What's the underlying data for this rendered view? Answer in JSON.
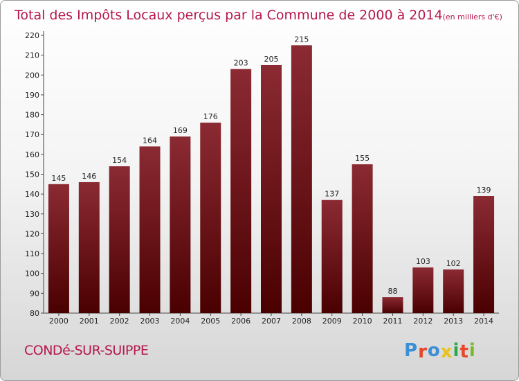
{
  "chart_data": {
    "type": "bar",
    "title": "Total des Impôts Locaux perçus par la Commune de 2000 à 2014",
    "subtitle": "(en milliers d'€)",
    "categories": [
      "2000",
      "2001",
      "2002",
      "2003",
      "2004",
      "2005",
      "2006",
      "2007",
      "2008",
      "2009",
      "2010",
      "2011",
      "2012",
      "2013",
      "2014"
    ],
    "values": [
      145,
      146,
      154,
      164,
      169,
      176,
      203,
      205,
      215,
      137,
      155,
      88,
      103,
      102,
      139
    ],
    "ylim": [
      80,
      220
    ],
    "yticks": [
      80,
      90,
      100,
      110,
      120,
      130,
      140,
      150,
      160,
      170,
      180,
      190,
      200,
      210,
      220
    ],
    "xlabel": "",
    "ylabel": "",
    "grid": false,
    "bar_color_top": "#8b2a33",
    "bar_color_bottom": "#4a0000"
  },
  "footer": {
    "commune": "CONDé-SUR-SUIPPE",
    "logo": "Proxiti",
    "logo_colors": [
      "#3a8fd6",
      "#e8462a",
      "#3a8fd6",
      "#e8c21a",
      "#2aa84a",
      "#e8462a",
      "#7ab82a"
    ]
  },
  "colors": {
    "title": "#b5174a",
    "commune": "#b5174a"
  }
}
